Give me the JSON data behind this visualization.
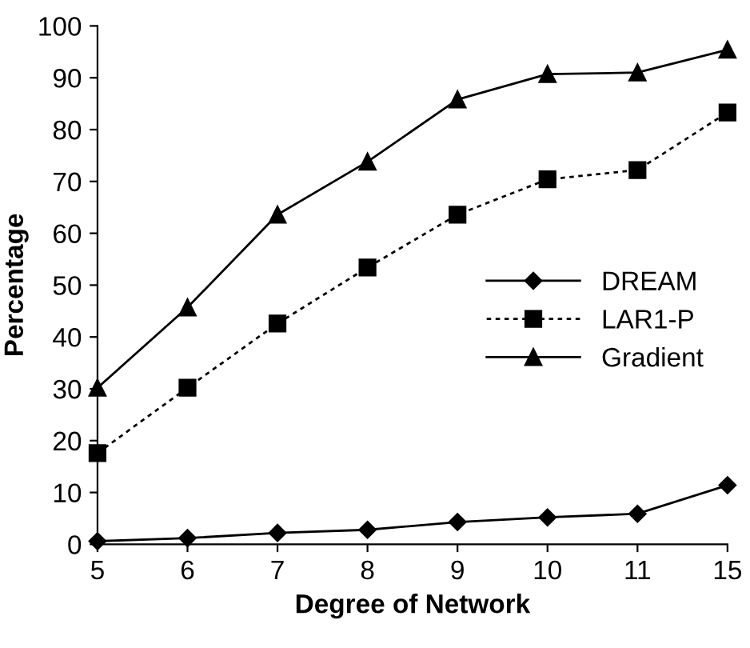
{
  "chart_data": {
    "type": "line",
    "xlabel": "Degree of Network",
    "ylabel": "Percentage",
    "categories": [
      "5",
      "6",
      "7",
      "8",
      "9",
      "10",
      "11",
      "15"
    ],
    "series": [
      {
        "name": "DREAM",
        "color": "#000000",
        "marker": "diamond",
        "line_style": "solid",
        "values": [
          0.6,
          1.2,
          2.2,
          2.8,
          4.3,
          5.2,
          5.9,
          11.4
        ]
      },
      {
        "name": "LAR1-P",
        "color": "#000000",
        "marker": "square",
        "line_style": "dotted",
        "values": [
          17.6,
          30.2,
          42.6,
          53.4,
          63.6,
          70.4,
          72.2,
          83.3
        ]
      },
      {
        "name": "Gradient",
        "color": "#000000",
        "marker": "triangle",
        "line_style": "solid",
        "values": [
          30.2,
          45.7,
          63.6,
          73.8,
          85.8,
          90.7,
          91,
          95.4
        ]
      }
    ],
    "ylim": [
      0,
      100
    ],
    "yticks": [
      0,
      10,
      20,
      30,
      40,
      50,
      60,
      70,
      80,
      90,
      100
    ],
    "grid": false,
    "legend": "right"
  }
}
